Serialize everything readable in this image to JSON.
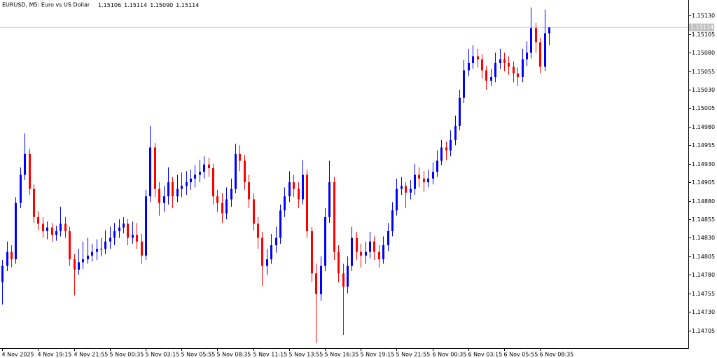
{
  "chart_data": {
    "type": "candlestick",
    "title": "EURUSD, M5:  Euro vs US Dollar",
    "ohlc_labels": [
      "1.15106",
      "1.15114",
      "1.15090",
      "1.15114"
    ],
    "current_price": 1.15114,
    "up_color": "#0000ff",
    "down_color": "#ff0000",
    "price_line_color": "#c0c0c0",
    "open": [
      1.1477,
      1.14792,
      1.14811,
      1.14801,
      1.14877,
      1.14915,
      1.14943,
      1.14896,
      1.14858,
      1.14849,
      1.14839,
      1.14844,
      1.14834,
      1.14839,
      1.14849,
      1.14839,
      1.14801,
      1.14787,
      1.14797,
      1.14801,
      1.14806,
      1.14811,
      1.14815,
      1.14815,
      1.14825,
      1.1483,
      1.14839,
      1.14844,
      1.14849,
      1.1483,
      1.14834,
      1.14825,
      1.14806,
      1.14886,
      1.14952,
      1.14896,
      1.14877,
      1.14886,
      1.14905,
      1.14886,
      1.14896,
      1.149,
      1.14905,
      1.1491,
      1.14915,
      1.14919,
      1.14929,
      1.14924,
      1.14886,
      1.14877,
      1.14863,
      1.14882,
      1.14896,
      1.14943,
      1.14934,
      1.14905,
      1.14882,
      1.14849,
      1.1483,
      1.14792,
      1.14801,
      1.1482,
      1.1483,
      1.14867,
      1.14886,
      1.14905,
      1.14896,
      1.14882,
      1.14915,
      1.14839,
      1.14782,
      1.14754,
      1.14792,
      1.14858,
      1.14905,
      1.14811,
      1.14782,
      1.14764,
      1.14792,
      1.1483,
      1.14811,
      1.14806,
      1.14811,
      1.14825,
      1.14811,
      1.14801,
      1.1482,
      1.14839,
      1.14867,
      1.14896,
      1.149,
      1.14891,
      1.14896,
      1.14915,
      1.1491,
      1.14905,
      1.1491,
      1.14919,
      1.14934,
      1.14952,
      1.14948,
      1.14962,
      1.14981,
      1.15019,
      1.15056,
      1.15066,
      1.15075,
      1.15071,
      1.15056,
      1.15042,
      1.15047,
      1.15066,
      1.15071,
      1.15066,
      1.15061,
      1.15052,
      1.15047,
      1.15071,
      1.1508,
      1.15113,
      1.15094,
      1.15061,
      1.15106
    ],
    "high": [
      1.148,
      1.14825,
      1.1482,
      1.14885,
      1.14925,
      1.14971,
      1.1495,
      1.14902,
      1.14866,
      1.14858,
      1.14852,
      1.1485,
      1.14846,
      1.14872,
      1.14858,
      1.14845,
      1.14808,
      1.14815,
      1.14825,
      1.1483,
      1.14822,
      1.14828,
      1.1483,
      1.1484,
      1.14845,
      1.1485,
      1.14855,
      1.14858,
      1.14855,
      1.14852,
      1.1485,
      1.14835,
      1.14895,
      1.14981,
      1.14958,
      1.14905,
      1.149,
      1.14925,
      1.14912,
      1.14915,
      1.14918,
      1.1492,
      1.14922,
      1.14928,
      1.14935,
      1.1494,
      1.14938,
      1.1493,
      1.14895,
      1.1489,
      1.14898,
      1.1491,
      1.14957,
      1.14955,
      1.14942,
      1.14915,
      1.1489,
      1.14858,
      1.14838,
      1.14815,
      1.14835,
      1.14845,
      1.14875,
      1.14898,
      1.1492,
      1.14915,
      1.14905,
      1.14935,
      1.14922,
      1.14845,
      1.14795,
      1.14805,
      1.1487,
      1.14934,
      1.14912,
      1.1482,
      1.14795,
      1.14805,
      1.14845,
      1.14838,
      1.14822,
      1.14825,
      1.14838,
      1.14832,
      1.1482,
      1.14832,
      1.1485,
      1.14878,
      1.1491,
      1.14912,
      1.14905,
      1.14908,
      1.1493,
      1.14925,
      1.1492,
      1.14922,
      1.14932,
      1.14948,
      1.14962,
      1.1496,
      1.14975,
      1.14995,
      1.1503,
      1.1507,
      1.15085,
      1.1509,
      1.15085,
      1.15078,
      1.15062,
      1.15058,
      1.1508,
      1.15085,
      1.1508,
      1.15075,
      1.15068,
      1.1506,
      1.15085,
      1.15095,
      1.15141,
      1.1512,
      1.151,
      1.15138,
      1.15114
    ],
    "low": [
      1.1474,
      1.14785,
      1.1479,
      1.14795,
      1.1487,
      1.14908,
      1.14888,
      1.1485,
      1.1484,
      1.1483,
      1.14828,
      1.14825,
      1.14826,
      1.14832,
      1.1483,
      1.14792,
      1.14752,
      1.1478,
      1.14788,
      1.14795,
      1.14798,
      1.148,
      1.14805,
      1.14808,
      1.14815,
      1.1482,
      1.1483,
      1.14836,
      1.1482,
      1.14822,
      1.14815,
      1.14795,
      1.148,
      1.14878,
      1.14885,
      1.1486,
      1.14865,
      1.14875,
      1.1487,
      1.14878,
      1.14885,
      1.14888,
      1.14895,
      1.14898,
      1.14905,
      1.1491,
      1.14912,
      1.14875,
      1.14865,
      1.1485,
      1.14855,
      1.14872,
      1.1489,
      1.1492,
      1.14895,
      1.1487,
      1.1484,
      1.14815,
      1.14765,
      1.1478,
      1.14795,
      1.1481,
      1.14822,
      1.14858,
      1.14878,
      1.14885,
      1.1487,
      1.14875,
      1.1483,
      1.1477,
      1.14688,
      1.14745,
      1.14785,
      1.1485,
      1.148,
      1.1477,
      1.14699,
      1.14755,
      1.14785,
      1.148,
      1.1479,
      1.14795,
      1.14802,
      1.148,
      1.1479,
      1.14795,
      1.14812,
      1.14832,
      1.1486,
      1.14888,
      1.1487,
      1.14882,
      1.14888,
      1.14898,
      1.14892,
      1.14898,
      1.14902,
      1.14912,
      1.14928,
      1.14935,
      1.1494,
      1.14955,
      1.14975,
      1.15012,
      1.15048,
      1.15058,
      1.1506,
      1.15045,
      1.1503,
      1.15035,
      1.1504,
      1.15058,
      1.15055,
      1.1505,
      1.1504,
      1.15035,
      1.1504,
      1.15062,
      1.15072,
      1.1508,
      1.15052,
      1.15055,
      1.1509
    ],
    "close": [
      1.14792,
      1.14811,
      1.14801,
      1.14877,
      1.14915,
      1.14943,
      1.14896,
      1.14858,
      1.14849,
      1.14839,
      1.14844,
      1.14834,
      1.14839,
      1.14849,
      1.14839,
      1.14801,
      1.14787,
      1.14797,
      1.14801,
      1.14806,
      1.14811,
      1.14815,
      1.14815,
      1.14825,
      1.1483,
      1.14839,
      1.14844,
      1.14849,
      1.1483,
      1.14834,
      1.14825,
      1.14806,
      1.14886,
      1.14952,
      1.14896,
      1.14877,
      1.14886,
      1.14905,
      1.14886,
      1.14896,
      1.149,
      1.14905,
      1.1491,
      1.14915,
      1.14919,
      1.14929,
      1.14924,
      1.14886,
      1.14877,
      1.14863,
      1.14882,
      1.14896,
      1.14943,
      1.14934,
      1.14905,
      1.14882,
      1.14849,
      1.1483,
      1.14792,
      1.14801,
      1.1482,
      1.1483,
      1.14867,
      1.14886,
      1.14905,
      1.14896,
      1.14882,
      1.14915,
      1.14839,
      1.14782,
      1.14754,
      1.14792,
      1.14858,
      1.14905,
      1.14811,
      1.14782,
      1.14764,
      1.14792,
      1.1483,
      1.14811,
      1.14806,
      1.14811,
      1.14825,
      1.14811,
      1.14801,
      1.1482,
      1.14839,
      1.14867,
      1.14896,
      1.149,
      1.14891,
      1.14896,
      1.14915,
      1.1491,
      1.14905,
      1.1491,
      1.14919,
      1.14934,
      1.14952,
      1.14948,
      1.14962,
      1.14981,
      1.15019,
      1.15056,
      1.15066,
      1.15075,
      1.15071,
      1.15056,
      1.15042,
      1.15047,
      1.15066,
      1.15071,
      1.15066,
      1.15061,
      1.15052,
      1.15047,
      1.15071,
      1.1508,
      1.15113,
      1.15094,
      1.15061,
      1.15106,
      1.15114
    ],
    "ylim": [
      1.14681,
      1.15151
    ],
    "yticks": [
      {
        "value": 1.1513,
        "label": "1.15130"
      },
      1.15105,
      {
        "value": 1.1508,
        "label": "1.15080"
      },
      1.15055,
      {
        "value": 1.1503,
        "label": "1.15030"
      },
      1.15005,
      {
        "value": 1.1498,
        "label": "1.14980"
      },
      1.14955,
      {
        "value": 1.1493,
        "label": "1.14930"
      },
      1.14905,
      {
        "value": 1.1488,
        "label": "1.14880"
      },
      1.14855,
      {
        "value": 1.1483,
        "label": "1.14830"
      },
      1.14805,
      {
        "value": 1.1478,
        "label": "1.14780"
      },
      1.14755,
      {
        "value": 1.1473,
        "label": "1.14730"
      },
      1.14705
    ],
    "xlim": [
      -0.5,
      153.1
    ],
    "xticks": [
      {
        "value": 0,
        "label": "4 Nov 2025"
      },
      {
        "value": 8,
        "label": "4 Nov 19:15"
      },
      {
        "value": 16,
        "label": "4 Nov 21:55"
      },
      {
        "value": 24,
        "label": "5 Nov 00:35"
      },
      {
        "value": 32,
        "label": "5 Nov 03:15"
      },
      {
        "value": 40,
        "label": "5 Nov 05:55"
      },
      {
        "value": 48,
        "label": "5 Nov 08:35"
      },
      {
        "value": 56,
        "label": "5 Nov 11:15"
      },
      {
        "value": 64,
        "label": "5 Nov 13:55"
      },
      {
        "value": 72,
        "label": "5 Nov 16:35"
      },
      {
        "value": 80,
        "label": "5 Nov 19:15"
      },
      {
        "value": 88,
        "label": "5 Nov 21:55"
      },
      {
        "value": 96,
        "label": "6 Nov 00:35"
      },
      {
        "value": 104,
        "label": "6 Nov 03:15"
      },
      {
        "value": 112,
        "label": "6 Nov 05:55"
      },
      {
        "value": 120,
        "label": "6 Nov 08:35"
      }
    ],
    "grid": false
  }
}
